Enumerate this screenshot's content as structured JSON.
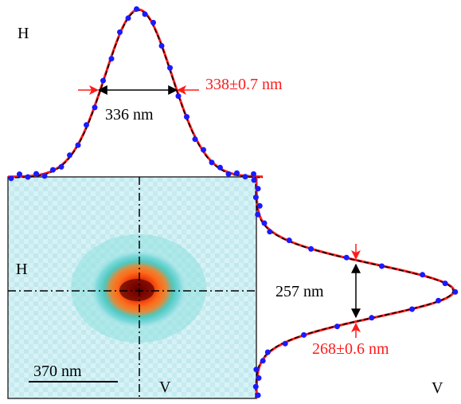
{
  "labels": {
    "h_top": "H",
    "h_left": "H",
    "v_bottom": "V",
    "v_right": "V",
    "h_fwhm": "336 nm",
    "h_fit": "338±0.7 nm",
    "v_fwhm": "257 nm",
    "v_fit": "268±0.6 nm",
    "scale_bar": "370 nm"
  },
  "colors": {
    "fit_line": "#ff1a1a",
    "dashed_line": "#000000",
    "data_points": "#1a1aff",
    "annotation_red": "#ff1a1a",
    "annotation_black": "#000000",
    "map_background": "#cfeff3",
    "map_center": "#8b0000"
  }
}
